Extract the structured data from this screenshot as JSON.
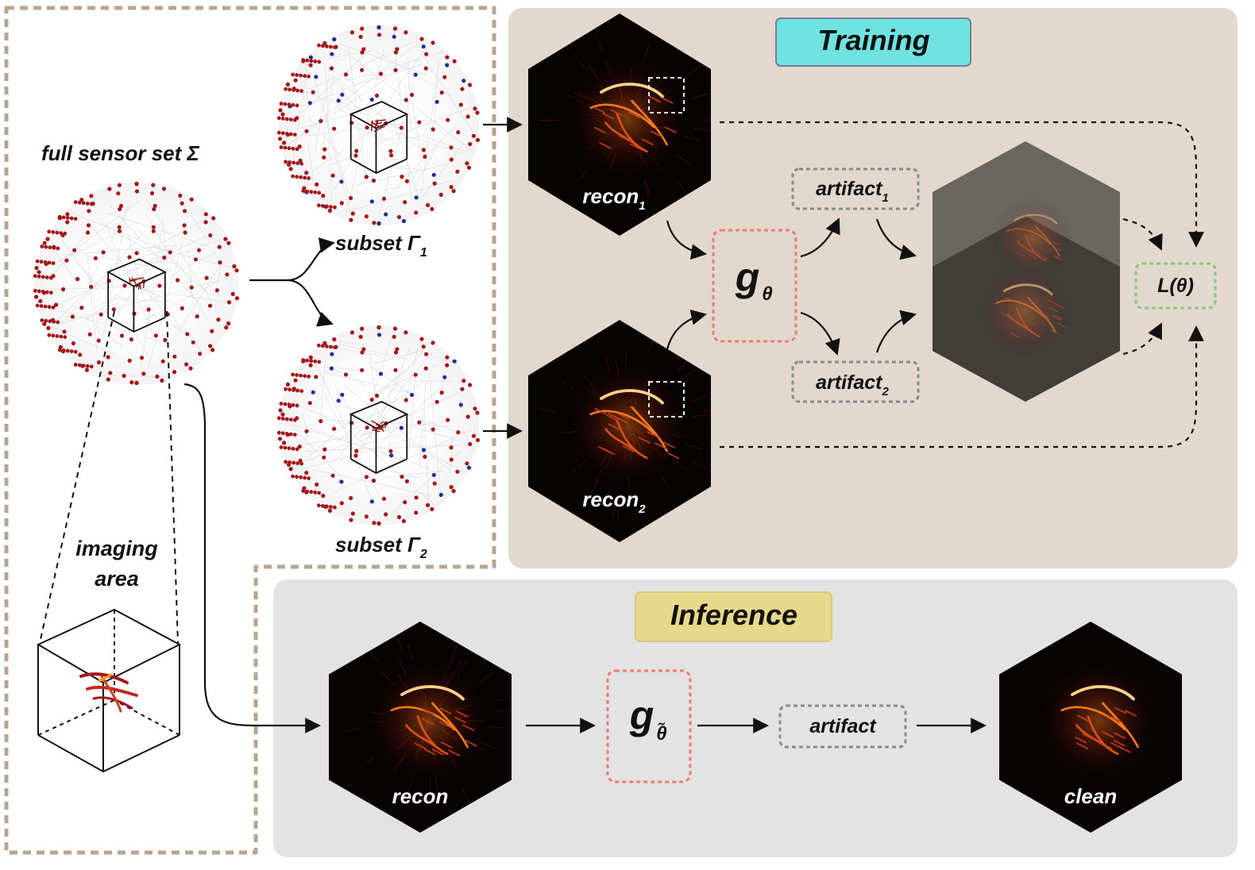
{
  "title_training": "Training",
  "title_inference": "Inference",
  "labels": {
    "full_sensor_set": "full sensor set Σ",
    "subset1": "subset Γ",
    "subset1_sub": "1",
    "subset2": "subset Γ",
    "subset2_sub": "2",
    "imaging_area_line1": "imaging",
    "imaging_area_line2": "area",
    "recon1": "recon",
    "recon1_sub": "1",
    "recon2": "recon",
    "recon2_sub": "2",
    "artifact1": "artifact",
    "artifact1_sub": "1",
    "artifact2": "artifact",
    "artifact2_sub": "2",
    "g": "g",
    "theta": "θ",
    "theta_tilde": "θ̃",
    "loss": "L(θ)",
    "recon": "recon",
    "artifact": "artifact",
    "clean": "clean"
  },
  "colors": {
    "training_bg": "#e2d8cb",
    "inference_bg": "#e3e3e3",
    "training_title_bg": "#6fe3e0",
    "inference_title_bg": "#e6d98a",
    "dashed_region": "#b7a592",
    "network_box": "#ee7a72",
    "artifact_box": "#8a8a8a",
    "loss_box": "#84c884",
    "sensor_red": "#a3161a",
    "sensor_blue": "#1f2f95",
    "vessel": "#ff8a2a"
  }
}
